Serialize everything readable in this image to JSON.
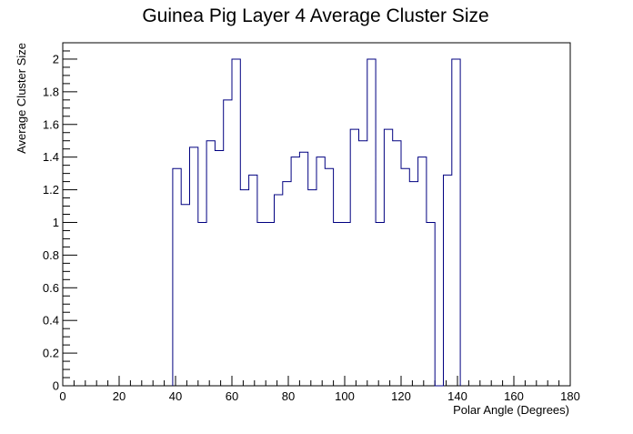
{
  "chart_data": {
    "type": "bar",
    "style": "step-histogram",
    "title": "Guinea Pig Layer 4 Average Cluster Size",
    "xlabel": "Polar Angle (Degrees)",
    "ylabel": "Average Cluster Size",
    "xlim": [
      0,
      180
    ],
    "ylim": [
      0,
      2.1
    ],
    "bin_width": 3,
    "x_ticks": [
      0,
      20,
      40,
      60,
      80,
      100,
      120,
      140,
      160,
      180
    ],
    "x_tick_labels": [
      "0",
      "20",
      "40",
      "60",
      "80",
      "100",
      "120",
      "140",
      "160",
      "180"
    ],
    "y_ticks": [
      0,
      0.2,
      0.4,
      0.6,
      0.8,
      1,
      1.2,
      1.4,
      1.6,
      1.8,
      2
    ],
    "y_tick_labels": [
      "0",
      "0.2",
      "0.4",
      "0.6",
      "0.8",
      "1",
      "1.2",
      "1.4",
      "1.6",
      "1.8",
      "2"
    ],
    "bins_low_edge": [
      39,
      42,
      45,
      48,
      51,
      54,
      57,
      60,
      63,
      66,
      69,
      72,
      75,
      78,
      81,
      84,
      87,
      90,
      93,
      96,
      99,
      102,
      105,
      108,
      111,
      114,
      117,
      120,
      123,
      126,
      129,
      132,
      135,
      138
    ],
    "values": [
      1.33,
      1.11,
      1.46,
      1.0,
      1.5,
      1.44,
      1.75,
      2.0,
      1.2,
      1.29,
      1.0,
      1.0,
      1.17,
      1.25,
      1.4,
      1.43,
      1.2,
      1.4,
      1.33,
      1.0,
      1.0,
      1.57,
      1.5,
      2.0,
      1.0,
      1.57,
      1.5,
      1.33,
      1.25,
      1.4,
      1.0,
      0,
      1.29,
      2.0
    ],
    "line_color": "#000080",
    "grid": false,
    "legend": "none"
  }
}
